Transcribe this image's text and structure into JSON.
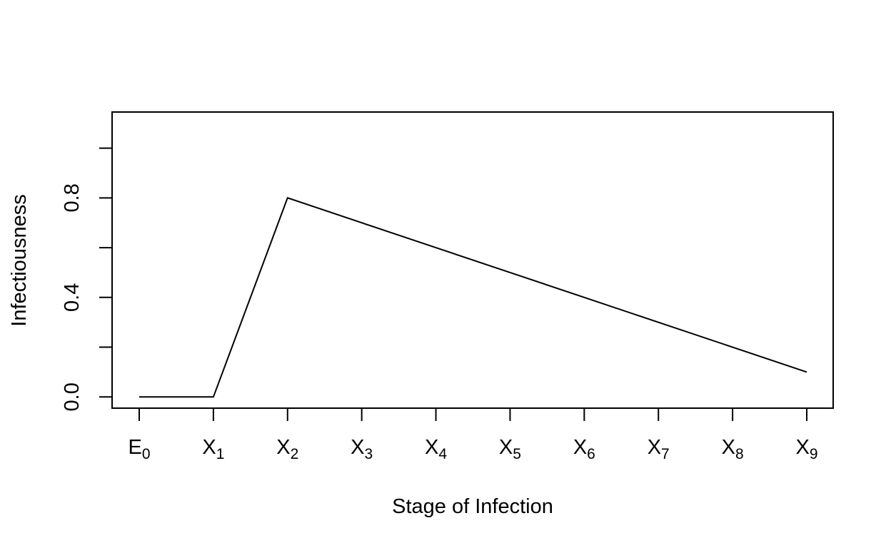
{
  "chart_data": {
    "type": "line",
    "title": "",
    "xlabel": "Stage of Infection",
    "ylabel": "Infectiousness",
    "x_categories": [
      {
        "base": "E",
        "sub": "0"
      },
      {
        "base": "X",
        "sub": "1"
      },
      {
        "base": "X",
        "sub": "2"
      },
      {
        "base": "X",
        "sub": "3"
      },
      {
        "base": "X",
        "sub": "4"
      },
      {
        "base": "X",
        "sub": "5"
      },
      {
        "base": "X",
        "sub": "6"
      },
      {
        "base": "X",
        "sub": "7"
      },
      {
        "base": "X",
        "sub": "8"
      },
      {
        "base": "X",
        "sub": "9"
      }
    ],
    "series": [
      {
        "values": [
          0.0,
          0.0,
          0.8,
          0.7,
          0.6,
          0.5,
          0.4,
          0.3,
          0.2,
          0.1
        ]
      }
    ],
    "ylim": [
      -0.045,
      1.145
    ],
    "y_ticks": [
      0.0,
      0.2,
      0.4,
      0.6,
      0.8,
      1.0
    ],
    "y_tick_labels": [
      {
        "value": 0.0,
        "label": "0.0"
      },
      {
        "value": 0.4,
        "label": "0.4"
      },
      {
        "value": 0.8,
        "label": "0.8"
      }
    ],
    "grid": false,
    "legend": "none",
    "line_color": "#000000"
  }
}
